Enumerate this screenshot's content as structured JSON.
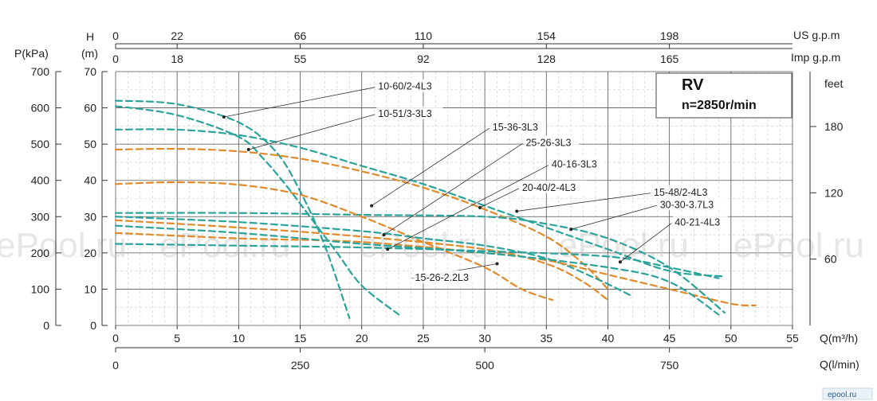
{
  "chart_data": {
    "type": "line",
    "title": "RV",
    "subtitle": "n=2850r/min",
    "xlabel_primary": "Q(m³/h)",
    "xlabel_liters": "Q(l/min)",
    "ylabel_head": "H",
    "ylabel_head_unit": "(m)",
    "ylabel_pressure": "P(kPa)",
    "ylabel_feet": "feet",
    "top_us_label": "US g.p.m",
    "top_imp_label": "Imp g.p.m",
    "xlim": [
      0,
      55
    ],
    "ylim": [
      0,
      70
    ],
    "grid": true,
    "x_ticks": [
      "0",
      "5",
      "10",
      "15",
      "20",
      "25",
      "30",
      "35",
      "40",
      "45",
      "50",
      "55"
    ],
    "liters_ticks": [
      {
        "q": 0,
        "label": "0"
      },
      {
        "q": 15,
        "label": "250"
      },
      {
        "q": 30,
        "label": "500"
      },
      {
        "q": 45,
        "label": "750"
      }
    ],
    "y_ticks": [
      "0",
      "10",
      "20",
      "30",
      "40",
      "50",
      "60",
      "70"
    ],
    "kpa_ticks": [
      "0",
      "100",
      "200",
      "300",
      "400",
      "500",
      "600",
      "700"
    ],
    "feet_ticks": [
      {
        "h": 18.29,
        "label": "60"
      },
      {
        "h": 36.58,
        "label": "120"
      },
      {
        "h": 54.86,
        "label": "180"
      }
    ],
    "us_ticks": [
      {
        "q": 0,
        "label": "0"
      },
      {
        "q": 5,
        "label": "22"
      },
      {
        "q": 15,
        "label": "66"
      },
      {
        "q": 25,
        "label": "110"
      },
      {
        "q": 35,
        "label": "154"
      },
      {
        "q": 45,
        "label": "198"
      }
    ],
    "imp_ticks": [
      {
        "q": 0,
        "label": "0"
      },
      {
        "q": 5,
        "label": "18"
      },
      {
        "q": 15,
        "label": "55"
      },
      {
        "q": 25,
        "label": "92"
      },
      {
        "q": 35,
        "label": "128"
      },
      {
        "q": 45,
        "label": "165"
      }
    ],
    "series": [
      {
        "name": "10-60/2-4L3",
        "color": "#2aa39c",
        "points": [
          [
            0,
            62
          ],
          [
            5,
            61
          ],
          [
            10,
            56
          ],
          [
            13,
            48
          ],
          [
            15,
            37
          ],
          [
            17,
            22
          ],
          [
            19,
            2
          ]
        ],
        "label_at": [
          8.8,
          57.5
        ],
        "label_text_at": [
          21.2,
          64.8
        ]
      },
      {
        "name": "10-51/3-3L3",
        "color": "#2aa39c",
        "points": [
          [
            0,
            60.5
          ],
          [
            5,
            58
          ],
          [
            10,
            52
          ],
          [
            12,
            46
          ],
          [
            14,
            38
          ],
          [
            16,
            29
          ],
          [
            18,
            20
          ],
          [
            20,
            11
          ],
          [
            23,
            3
          ]
        ],
        "label_at": [
          10.8,
          48.5
        ],
        "label_text_at": [
          21.2,
          57.3
        ]
      },
      {
        "name": "15-36-3L3",
        "color": "#2aa39c",
        "points": [
          [
            0,
            54
          ],
          [
            5,
            54
          ],
          [
            10,
            52.5
          ],
          [
            15,
            49
          ],
          [
            20,
            44
          ],
          [
            25,
            39
          ],
          [
            30,
            33
          ],
          [
            35,
            27
          ],
          [
            40,
            21
          ],
          [
            45,
            15
          ],
          [
            49.5,
            13.5
          ]
        ],
        "label_at": [
          20.8,
          33
        ],
        "label_text_at": [
          30.5,
          53.5
        ]
      },
      {
        "name": "25-26-3L3",
        "color": "#e18a2a",
        "points": [
          [
            0,
            48.5
          ],
          [
            5,
            48.7
          ],
          [
            10,
            48
          ],
          [
            15,
            46
          ],
          [
            20,
            42.5
          ],
          [
            25,
            38
          ],
          [
            30,
            32
          ],
          [
            35,
            24.5
          ],
          [
            38,
            17
          ],
          [
            40,
            10
          ]
        ],
        "label_at": [
          21.8,
          25
        ],
        "label_text_at": [
          33.2,
          49.3
        ]
      },
      {
        "name": "40-16-3L3",
        "color": "#2aa39c",
        "points": [
          [
            0,
            31
          ],
          [
            10,
            31
          ],
          [
            20,
            30.5
          ],
          [
            30,
            30
          ],
          [
            35,
            28
          ],
          [
            40,
            24
          ],
          [
            45,
            16
          ],
          [
            49.5,
            3.5
          ]
        ],
        "label_at": [
          22.1,
          21
        ],
        "label_text_at": [
          35.3,
          43.3
        ]
      },
      {
        "name": "20-40/2-4L3",
        "color": "#e18a2a",
        "points": [
          [
            0,
            39
          ],
          [
            5,
            39.5
          ],
          [
            10,
            38.8
          ],
          [
            15,
            36
          ],
          [
            20,
            30
          ],
          [
            25,
            23
          ],
          [
            30,
            16
          ],
          [
            33,
            10
          ],
          [
            35.5,
            7
          ]
        ],
        "label_at": [
          29.6,
          32.5
        ],
        "label_text_at": [
          32.9,
          36.9
        ]
      },
      {
        "name": "15-48/2-4L3",
        "color": "#2aa39c",
        "points": [
          [
            0,
            30
          ],
          [
            10,
            28.5
          ],
          [
            20,
            26
          ],
          [
            25,
            24
          ],
          [
            30,
            22
          ],
          [
            35,
            18.5
          ],
          [
            39,
            13
          ],
          [
            42,
            8
          ]
        ],
        "label_at": [
          32.6,
          31.5
        ],
        "label_text_at": [
          43.6,
          35.6
        ]
      },
      {
        "name": "30-30-3.7L3",
        "color": "#e18a2a",
        "points": [
          [
            0,
            25.5
          ],
          [
            10,
            24
          ],
          [
            20,
            23
          ],
          [
            30,
            20
          ],
          [
            35,
            18
          ],
          [
            40,
            14
          ],
          [
            45,
            10
          ],
          [
            50,
            6
          ],
          [
            52,
            5.5
          ]
        ],
        "label_at": [
          37,
          26.5
        ],
        "label_text_at": [
          44.1,
          32.2
        ]
      },
      {
        "name": "40-21-4L3",
        "color": "#e18a2a",
        "points": [
          [
            0,
            29
          ],
          [
            10,
            27
          ],
          [
            20,
            24.5
          ],
          [
            30,
            21
          ],
          [
            35,
            17
          ],
          [
            38,
            12
          ],
          [
            40,
            7
          ]
        ],
        "label_at": [
          41,
          17.5
        ],
        "label_text_at": [
          45.3,
          27.3
        ]
      },
      {
        "name": "15-26-2.2L3",
        "color": "#2aa39c",
        "points": [
          [
            0,
            27.5
          ],
          [
            10,
            25.5
          ],
          [
            20,
            22.5
          ],
          [
            30,
            20
          ],
          [
            40,
            16
          ],
          [
            45,
            12
          ],
          [
            49,
            3
          ]
        ],
        "label_at": [
          31,
          17
        ],
        "label_text_at": [
          24.2,
          12.1
        ]
      },
      {
        "name": "",
        "color": "#2aa39c",
        "points": [
          [
            0,
            22.5
          ],
          [
            10,
            22
          ],
          [
            20,
            21.5
          ],
          [
            30,
            20.5
          ],
          [
            40,
            19
          ],
          [
            45,
            16
          ],
          [
            49,
            13
          ]
        ]
      }
    ]
  },
  "watermarks": [
    "ePool.ru",
    "ePool.ru",
    "ePool.ru",
    "ePool.ru",
    "ePool.ru"
  ],
  "footer_logo": "epool.ru"
}
